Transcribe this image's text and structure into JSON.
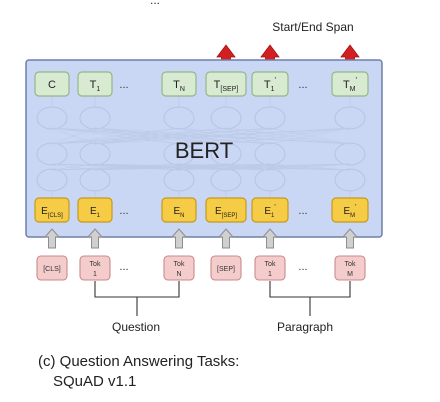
{
  "header_text": "...",
  "output_label": "Start/End Span",
  "model_label": "BERT",
  "top_tokens": [
    {
      "main": "C",
      "sub": "",
      "sup": ""
    },
    {
      "main": "T",
      "sub": "1",
      "sup": ""
    },
    {
      "main": "...",
      "sub": "",
      "sup": ""
    },
    {
      "main": "T",
      "sub": "N",
      "sup": ""
    },
    {
      "main": "T",
      "sub": "[SEP]",
      "sup": ""
    },
    {
      "main": "T",
      "sub": "1",
      "sup": "'"
    },
    {
      "main": "...",
      "sub": "",
      "sup": ""
    },
    {
      "main": "T",
      "sub": "M",
      "sup": "'"
    }
  ],
  "embeddings": [
    {
      "main": "E",
      "sub": "[CLS]",
      "sup": ""
    },
    {
      "main": "E",
      "sub": "1",
      "sup": ""
    },
    {
      "main": "...",
      "sub": "",
      "sup": ""
    },
    {
      "main": "E",
      "sub": "N",
      "sup": ""
    },
    {
      "main": "E",
      "sub": "[SEP]",
      "sup": ""
    },
    {
      "main": "E",
      "sub": "1",
      "sup": "'"
    },
    {
      "main": "...",
      "sub": "",
      "sup": ""
    },
    {
      "main": "E",
      "sub": "M",
      "sup": "'"
    }
  ],
  "input_tokens": [
    {
      "line1": "[CLS]",
      "line2": ""
    },
    {
      "line1": "Tok",
      "line2": "1"
    },
    {
      "line1": "...",
      "line2": ""
    },
    {
      "line1": "Tok",
      "line2": "N"
    },
    {
      "line1": "[SEP]",
      "line2": ""
    },
    {
      "line1": "Tok",
      "line2": "1"
    },
    {
      "line1": "...",
      "line2": ""
    },
    {
      "line1": "Tok",
      "line2": "M"
    }
  ],
  "group_labels": {
    "question": "Question",
    "paragraph": "Paragraph"
  },
  "caption": {
    "line1": "(c) Question Answering Tasks:",
    "line2": "SQuAD v1.1"
  },
  "colors": {
    "output_box": "#d9ead3",
    "output_border": "#93b786",
    "embedding_box": "#f6cb45",
    "embedding_border": "#c49a1e",
    "input_box": "#f4cccc",
    "input_border": "#c98a8a",
    "model_body": "#c9d7f5",
    "model_border": "#6f7ea8",
    "arrow_red": "#d31f1f",
    "arrow_gray": "#d0d0d0"
  }
}
